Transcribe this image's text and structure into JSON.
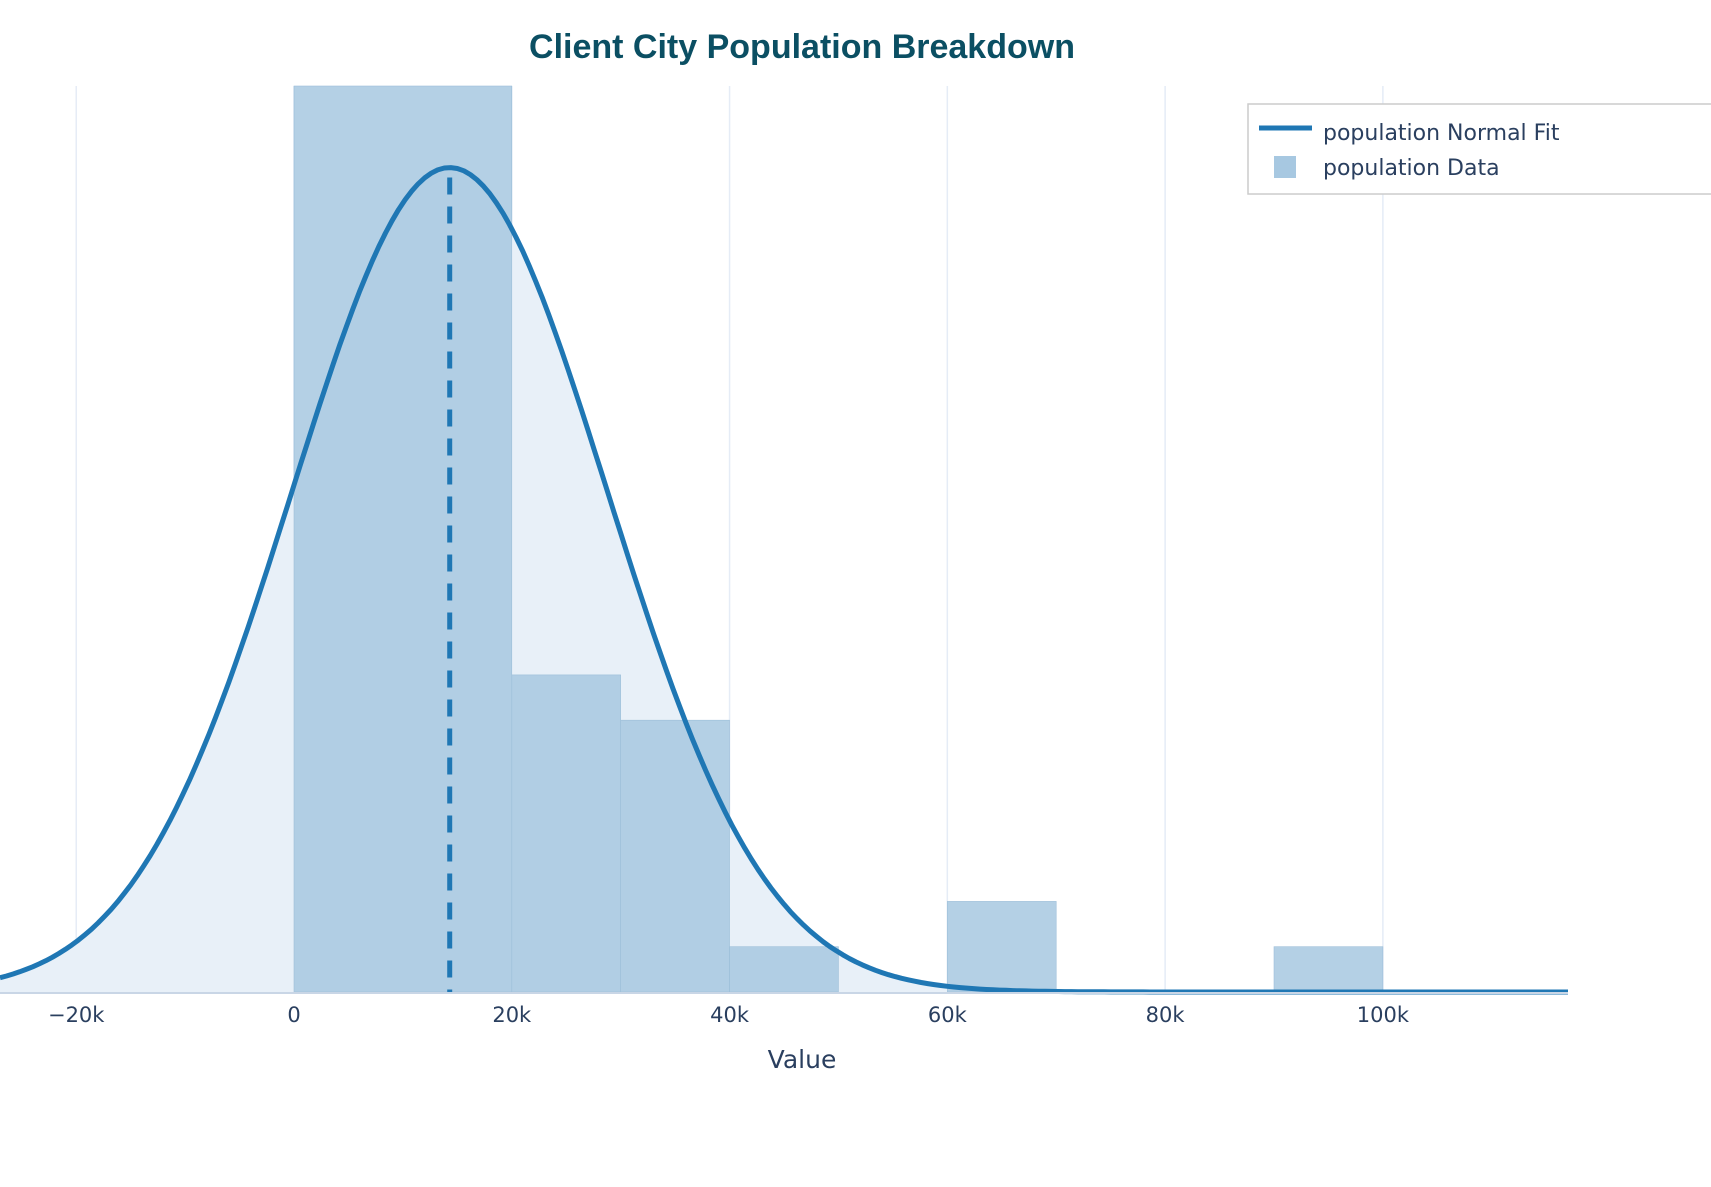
{
  "chart_data": {
    "type": "histogram",
    "title": "Client City Population Breakdown",
    "xlabel": "Value",
    "ylabel": "",
    "xlim": [
      -27000,
      117000
    ],
    "x_ticks": [
      -20000,
      0,
      20000,
      40000,
      60000,
      80000,
      100000
    ],
    "x_tick_labels": [
      "−20k",
      "0",
      "20k",
      "40k",
      "60k",
      "80k",
      "100k"
    ],
    "grid": true,
    "legend_position": "top-right",
    "histogram": {
      "name": "population Data",
      "color": "#a7c8e1",
      "bins": [
        {
          "start": 0,
          "end": 20000,
          "count": 20
        },
        {
          "start": 20000,
          "end": 30000,
          "count": 7
        },
        {
          "start": 30000,
          "end": 40000,
          "count": 6
        },
        {
          "start": 40000,
          "end": 50000,
          "count": 1
        },
        {
          "start": 60000,
          "end": 70000,
          "count": 2
        },
        {
          "start": 90000,
          "end": 100000,
          "count": 1
        }
      ],
      "ylim": [
        0,
        20
      ]
    },
    "normal_fit": {
      "name": "population Normal Fit",
      "color": "#1f77b4",
      "fill_color": "#e8f0f8",
      "mean": 14300,
      "std": 14500,
      "peak_fraction": 0.91
    }
  }
}
